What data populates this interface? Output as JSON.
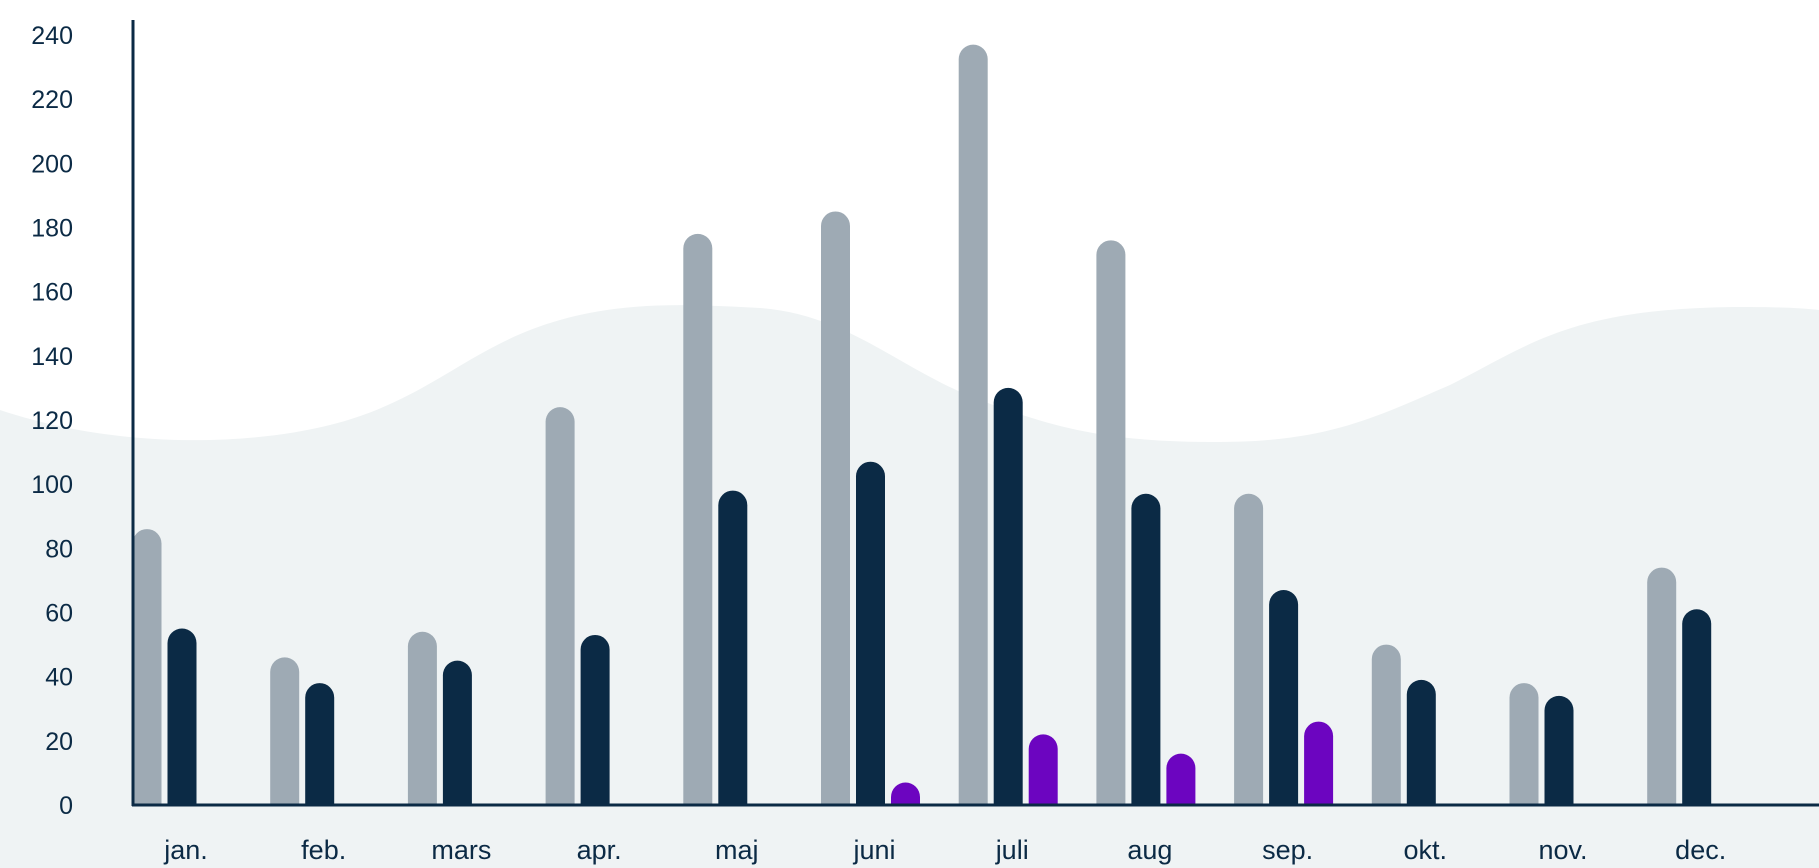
{
  "chart_data": {
    "type": "bar",
    "categories": [
      "jan.",
      "feb.",
      "mars",
      "apr.",
      "maj",
      "juni",
      "juli",
      "aug",
      "sep.",
      "okt.",
      "nov.",
      "dec."
    ],
    "series": [
      {
        "color": "#9eaab4",
        "values": [
          86,
          46,
          54,
          124,
          178,
          185,
          237,
          176,
          97,
          50,
          38,
          74
        ]
      },
      {
        "color": "#0b2a45",
        "values": [
          55,
          38,
          45,
          53,
          98,
          107,
          130,
          97,
          67,
          39,
          34,
          61
        ]
      },
      {
        "color": "#6c05c0",
        "values": [
          0,
          0,
          0,
          0,
          0,
          7,
          22,
          16,
          26,
          0,
          0,
          0
        ]
      }
    ],
    "ylim": [
      0,
      240
    ],
    "yticks": [
      0,
      20,
      40,
      60,
      80,
      100,
      120,
      140,
      160,
      180,
      200,
      220,
      240
    ],
    "grid": false,
    "background_wave_color": "#eff3f4",
    "axis_color": "#0b2a45"
  }
}
